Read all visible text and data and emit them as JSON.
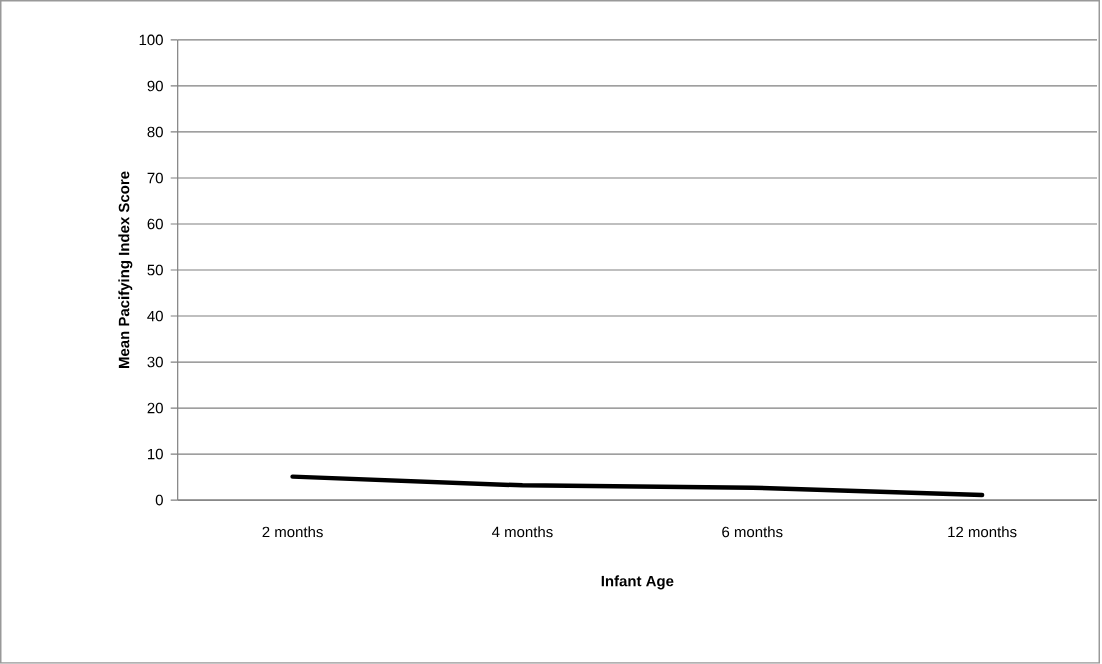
{
  "chart_data": {
    "type": "line",
    "xlabel": "Infant Age",
    "ylabel": "Mean Pacifying Index Score",
    "categories": [
      "2 months",
      "4 months",
      "6 months",
      "12 months"
    ],
    "series": [
      {
        "color": "#000000",
        "values": [
          5.1,
          3.2,
          2.7,
          1.1
        ]
      }
    ],
    "ylim": [
      0,
      100
    ],
    "yticks": [
      0,
      10,
      20,
      30,
      40,
      50,
      60,
      70,
      80,
      90,
      100
    ],
    "grid": "y",
    "marker": "none",
    "line_style": "solid",
    "legend": false
  }
}
